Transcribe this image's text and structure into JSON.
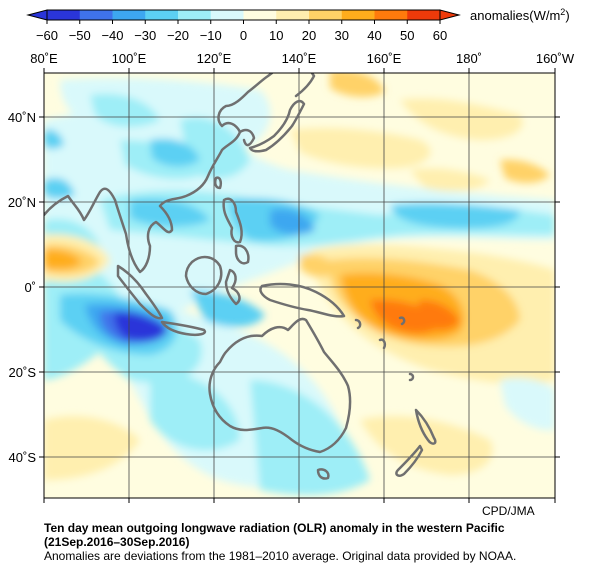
{
  "colorbar": {
    "ticks": [
      "−60",
      "−50",
      "−40",
      "−30",
      "−20",
      "−10",
      "0",
      "10",
      "20",
      "30",
      "40",
      "50",
      "60"
    ],
    "unit_label": "anomalies(W/m",
    "unit_sup": "2",
    "unit_close": ")",
    "colors": [
      "#2a35d9",
      "#3f72ea",
      "#3da7f0",
      "#5cd0f3",
      "#9eeef7",
      "#d9f9fb",
      "#fffde0",
      "#ffefaf",
      "#ffd267",
      "#ffad1c",
      "#ff7a0c",
      "#ee3a0a"
    ]
  },
  "axes": {
    "x_ticks": [
      "80˚E",
      "100˚E",
      "120˚E",
      "140˚E",
      "160˚E",
      "180˚",
      "160˚W"
    ],
    "y_ticks": [
      "40˚N",
      "20˚N",
      "0˚",
      "20˚S",
      "40˚S"
    ]
  },
  "credit": "CPD/JMA",
  "title_line1": "Ten day mean outgoing longwave radiation (OLR) anomaly in the western Pacific",
  "title_line2": "(21Sep.2016–30Sep.2016)",
  "note": "Anomalies are deviations from the 1981–2010 average. Original data provided by NOAA."
}
